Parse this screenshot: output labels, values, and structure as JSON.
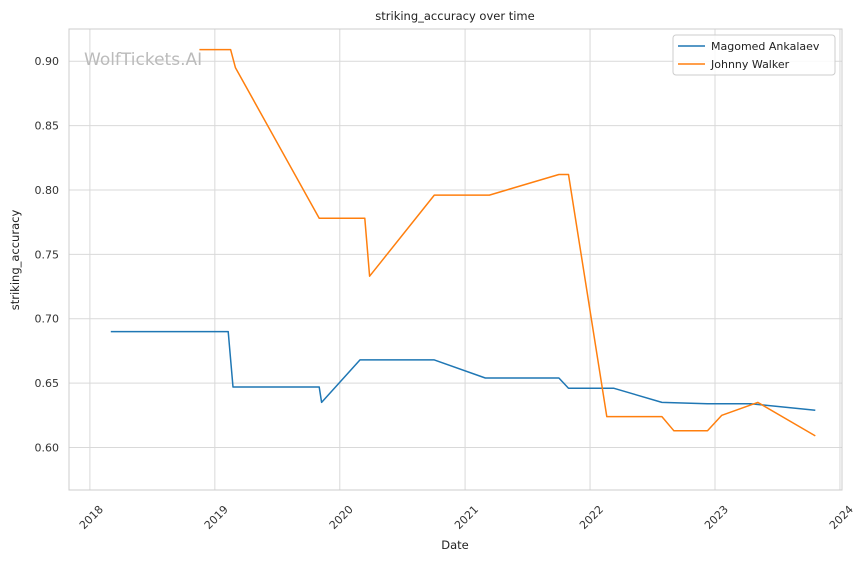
{
  "chart_data": {
    "type": "line",
    "title": "striking_accuracy over time",
    "xlabel": "Date",
    "ylabel": "striking_accuracy",
    "watermark": "WolfTickets.AI",
    "xlim": [
      "2017-11-01",
      "2024-01-07"
    ],
    "ylim": [
      0.567,
      0.925
    ],
    "x_ticks": [
      "2018",
      "2019",
      "2020",
      "2021",
      "2022",
      "2023",
      "2024"
    ],
    "y_ticks": [
      "0.60",
      "0.65",
      "0.70",
      "0.75",
      "0.80",
      "0.85",
      "0.90"
    ],
    "grid": true,
    "legend_position": "top-right",
    "series": [
      {
        "name": "Magomed Ankalaev",
        "color": "#1f77b4",
        "points": [
          [
            "2018-03-03",
            0.69
          ],
          [
            "2019-02-09",
            0.69
          ],
          [
            "2019-02-23",
            0.647
          ],
          [
            "2019-11-02",
            0.647
          ],
          [
            "2019-11-09",
            0.635
          ],
          [
            "2020-02-29",
            0.668
          ],
          [
            "2020-10-03",
            0.668
          ],
          [
            "2021-03-01",
            0.654
          ],
          [
            "2021-10-02",
            0.654
          ],
          [
            "2021-10-30",
            0.646
          ],
          [
            "2022-03-12",
            0.646
          ],
          [
            "2022-07-30",
            0.635
          ],
          [
            "2022-12-10",
            0.634
          ],
          [
            "2023-04-15",
            0.634
          ],
          [
            "2023-10-21",
            0.629
          ]
        ]
      },
      {
        "name": "Johnny Walker",
        "color": "#ff7f0e",
        "points": [
          [
            "2018-11-17",
            0.909
          ],
          [
            "2019-02-16",
            0.909
          ],
          [
            "2019-03-02",
            0.895
          ],
          [
            "2019-11-02",
            0.778
          ],
          [
            "2020-03-14",
            0.778
          ],
          [
            "2020-03-28",
            0.733
          ],
          [
            "2020-10-03",
            0.796
          ],
          [
            "2021-03-13",
            0.796
          ],
          [
            "2021-10-02",
            0.812
          ],
          [
            "2021-10-30",
            0.812
          ],
          [
            "2022-02-19",
            0.624
          ],
          [
            "2022-07-30",
            0.624
          ],
          [
            "2022-09-03",
            0.613
          ],
          [
            "2022-12-10",
            0.613
          ],
          [
            "2023-01-21",
            0.625
          ],
          [
            "2023-05-06",
            0.635
          ],
          [
            "2023-10-21",
            0.609
          ]
        ]
      }
    ]
  }
}
